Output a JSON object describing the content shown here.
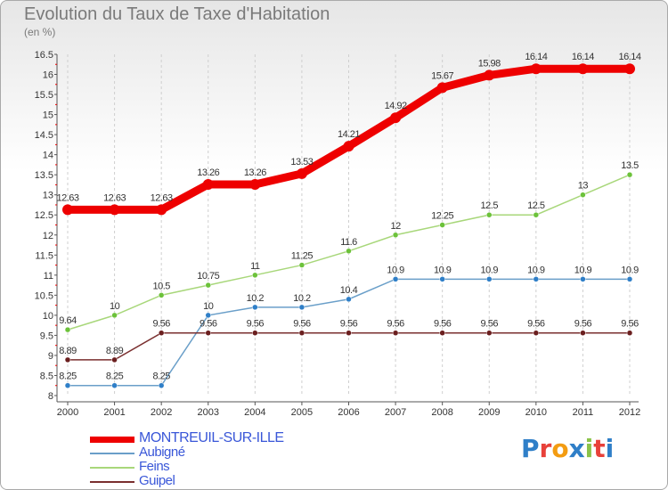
{
  "header": {
    "title": "Evolution du Taux de Taxe d'Habitation",
    "subtitle": "(en %)"
  },
  "logo": {
    "text": "Proxiti",
    "letter_colors": [
      "#2f7fc8",
      "#e8413a",
      "#f39c12",
      "#2f7fc8",
      "#8bc34a",
      "#e8413a",
      "#2f7fc8"
    ]
  },
  "chart_data": {
    "type": "line",
    "title": "Evolution du Taux de Taxe d'Habitation",
    "subtitle": "(en %)",
    "xlabel": "",
    "ylabel": "",
    "x": [
      "2000",
      "2001",
      "2002",
      "2003",
      "2004",
      "2005",
      "2006",
      "2007",
      "2008",
      "2009",
      "2010",
      "2011",
      "2012"
    ],
    "ylim": [
      8,
      16.5
    ],
    "yticks": [
      "8",
      "8.5",
      "9",
      "9.5",
      "10",
      "10.5",
      "11",
      "11.5",
      "12",
      "12.5",
      "13",
      "13.5",
      "14",
      "14.5",
      "15",
      "15.5",
      "16",
      "16.5"
    ],
    "grid": "vertical dashed",
    "legend_position": "bottom-left",
    "series": [
      {
        "name": "MONTREUIL-SUR-ILLE",
        "color": "#ee0000",
        "values": [
          12.63,
          12.63,
          12.63,
          13.26,
          13.26,
          13.53,
          14.21,
          14.92,
          15.67,
          15.98,
          16.14,
          16.14,
          16.14
        ],
        "labels": [
          "12.63",
          "12.63",
          "12.63",
          "13.26",
          "13.26",
          "13.53",
          "14.21",
          "14.92",
          "15.67",
          "15.98",
          "16.14",
          "16.14",
          "16.14"
        ],
        "emphasis": true
      },
      {
        "name": "Aubigné",
        "color": "#6a9fc9",
        "point_color": "#2f7fc8",
        "values": [
          8.25,
          8.25,
          8.25,
          10,
          10.2,
          10.2,
          10.4,
          10.9,
          10.9,
          10.9,
          10.9,
          10.9,
          10.9
        ],
        "labels": [
          "8.25",
          "8.25",
          "8.25",
          "10",
          "10.2",
          "10.2",
          "10.4",
          "10.9",
          "10.9",
          "10.9",
          "10.9",
          "10.9",
          "10.9"
        ]
      },
      {
        "name": "Feins",
        "color": "#a8d77a",
        "point_color": "#6cc23a",
        "values": [
          9.64,
          10,
          10.5,
          10.75,
          11,
          11.25,
          11.6,
          12,
          12.25,
          12.5,
          12.5,
          13,
          13.5
        ],
        "labels": [
          "9.64",
          "10",
          "10.5",
          "10.75",
          "11",
          "11.25",
          "11.6",
          "12",
          "12.25",
          "12.5",
          "12.5",
          "13",
          "13.5"
        ]
      },
      {
        "name": "Guipel",
        "color": "#7a2f2f",
        "point_color": "#6b1f1f",
        "values": [
          8.89,
          8.89,
          9.56,
          9.56,
          9.56,
          9.56,
          9.56,
          9.56,
          9.56,
          9.56,
          9.56,
          9.56,
          9.56
        ],
        "labels": [
          "8.89",
          "8.89",
          "9.56",
          "9.56",
          "9.56",
          "9.56",
          "9.56",
          "9.56",
          "9.56",
          "9.56",
          "9.56",
          "9.56",
          "9.56"
        ]
      }
    ]
  }
}
